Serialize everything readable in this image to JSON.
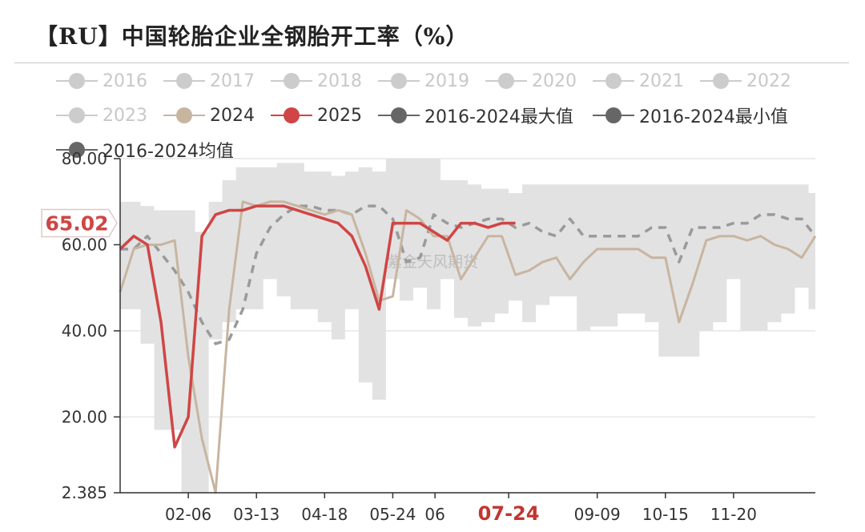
{
  "title": "【RU】中国轮胎企业全钢胎开工率（%）",
  "watermark": "紫金天风期货",
  "colors": {
    "band": "#e2e2e2",
    "mean": "#9a9a9a",
    "y2024": "#c8b5a0",
    "y2025": "#d04545",
    "inactive": "#cccccc",
    "extreme": "#666666",
    "grid": "#e6e6e6"
  },
  "chart_data": {
    "type": "line",
    "title": "【RU】中国轮胎企业全钢胎开工率（%）",
    "xlabel": "",
    "ylabel": "",
    "ylim": [
      2.385,
      80
    ],
    "y_ticks": [
      {
        "label": "2.385",
        "value": 2.385
      },
      {
        "label": "20.00",
        "value": 20
      },
      {
        "label": "40.00",
        "value": 40
      },
      {
        "label": "60.00",
        "value": 60
      },
      {
        "label": "80.00",
        "value": 80
      }
    ],
    "x_ticks": [
      {
        "label": "02-06",
        "week": 5
      },
      {
        "label": "03-13",
        "week": 10
      },
      {
        "label": "04-18",
        "week": 15
      },
      {
        "label": "05-24",
        "week": 20
      },
      {
        "label": "06",
        "week": 23.1
      },
      {
        "label": "07-24",
        "week": 28.5,
        "highlight": true
      },
      {
        "label": "09-09",
        "week": 35
      },
      {
        "label": "10-15",
        "week": 40
      },
      {
        "label": "11-20",
        "week": 45
      }
    ],
    "weeks": 52,
    "pointer": {
      "label": "65.02",
      "value": 65.02
    },
    "legend": [
      {
        "name": "2016",
        "active": false
      },
      {
        "name": "2017",
        "active": false
      },
      {
        "name": "2018",
        "active": false
      },
      {
        "name": "2019",
        "active": false
      },
      {
        "name": "2020",
        "active": false
      },
      {
        "name": "2021",
        "active": false
      },
      {
        "name": "2022",
        "active": false
      },
      {
        "name": "2023",
        "active": false
      },
      {
        "name": "2024",
        "active": true,
        "color": "#c8b5a0"
      },
      {
        "name": "2025",
        "active": true,
        "color": "#d04545"
      },
      {
        "name": "2016-2024最大值",
        "active": true,
        "color": "#666666"
      },
      {
        "name": "2016-2024最小值",
        "active": true,
        "color": "#666666"
      },
      {
        "name": "2016-2024均值",
        "active": true,
        "color": "#666666"
      }
    ],
    "band_max": [
      70,
      70,
      69,
      68,
      68,
      68,
      63,
      70,
      75,
      78,
      78,
      78,
      79,
      79,
      77,
      77,
      76,
      77,
      78,
      77,
      80,
      80,
      80,
      80,
      75,
      75,
      74,
      73,
      73,
      72,
      74,
      74,
      74,
      74,
      74,
      74,
      74,
      74,
      74,
      74,
      74,
      74,
      74,
      74,
      74,
      74,
      74,
      74,
      74,
      74,
      74,
      72
    ],
    "band_min": [
      45,
      45,
      37,
      17,
      17,
      2.4,
      2.4,
      38,
      42,
      45,
      45,
      52,
      48,
      45,
      45,
      42,
      38,
      45,
      28,
      24,
      52,
      47,
      50,
      45,
      52,
      43,
      41,
      42,
      44,
      47,
      42,
      46,
      48,
      48,
      40,
      41,
      41,
      44,
      44,
      42,
      34,
      34,
      34,
      40,
      42,
      52,
      40,
      40,
      42,
      44,
      50,
      45
    ],
    "series": [
      {
        "name": "2016-2024均值",
        "dashed": true,
        "values": [
          59,
          59,
          62,
          58,
          54,
          49,
          42,
          37,
          38,
          45,
          58,
          64,
          67,
          69,
          69,
          68,
          68,
          67,
          69,
          69,
          66,
          56,
          57,
          67,
          65,
          64,
          65,
          66,
          66,
          64,
          65,
          63,
          62,
          66,
          62,
          62,
          62,
          62,
          62,
          64,
          64,
          56,
          64,
          64,
          64,
          65,
          65,
          67,
          67,
          66,
          66,
          62
        ]
      },
      {
        "name": "2024",
        "values": [
          49,
          59,
          60,
          60,
          61,
          34,
          15,
          2.4,
          45,
          70,
          69,
          70,
          70,
          69,
          68,
          67,
          68,
          67,
          58,
          47,
          48,
          68,
          66,
          62,
          62,
          52,
          57,
          62,
          62,
          53,
          54,
          56,
          57,
          52,
          56,
          59,
          59,
          59,
          59,
          57,
          57,
          42,
          51,
          61,
          62,
          62,
          61,
          62,
          60,
          59,
          57,
          62
        ]
      },
      {
        "name": "2025",
        "values": [
          59,
          62,
          60,
          42,
          13,
          20,
          62,
          67,
          68,
          68,
          69,
          69,
          69,
          68,
          67,
          66,
          65,
          62,
          55,
          45,
          65,
          65,
          65,
          63,
          61,
          65,
          65,
          64,
          65,
          65.02
        ]
      }
    ]
  }
}
